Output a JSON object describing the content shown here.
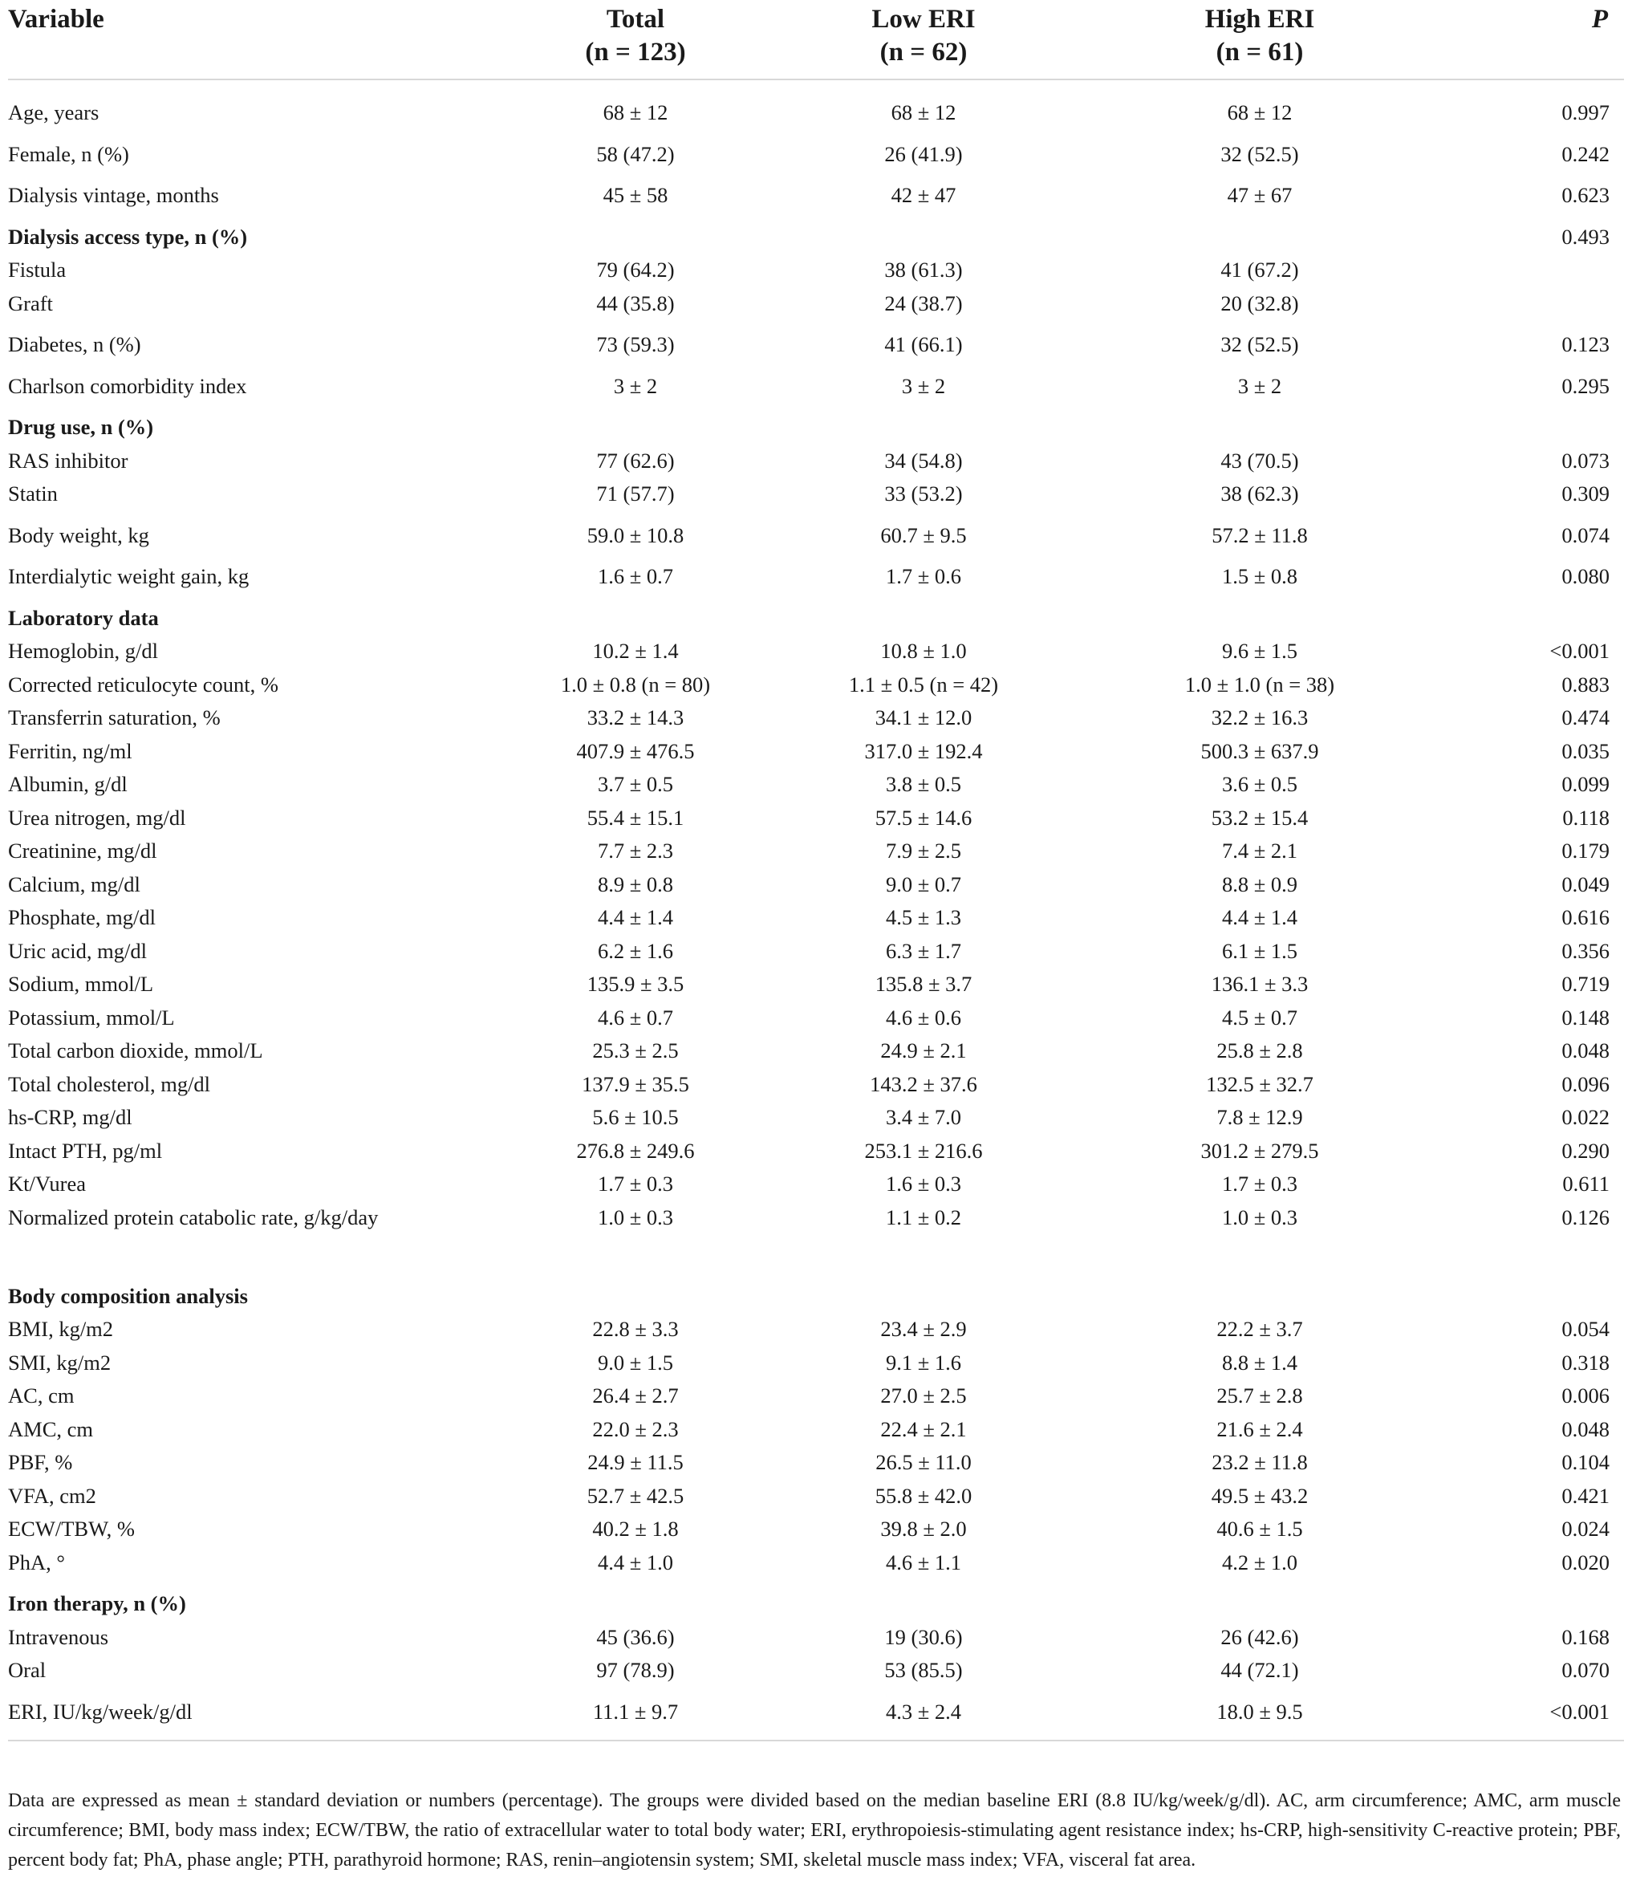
{
  "header": {
    "variable": "Variable",
    "total": "Total",
    "total_n": "(n = 123)",
    "low": "Low ERI",
    "low_n": "(n = 62)",
    "high": "High ERI",
    "high_n": "(n = 61)",
    "p": "P"
  },
  "rows": [
    {
      "label": "Age, years",
      "total": "68 ± 12",
      "low": "68 ± 12",
      "high": "68 ± 12",
      "p": "0.997"
    },
    {
      "label": "Female, n (%)",
      "total": "58 (47.2)",
      "low": "26 (41.9)",
      "high": "32 (52.5)",
      "p": "0.242"
    },
    {
      "label": "Dialysis vintage, months",
      "total": "45 ± 58",
      "low": "42 ± 47",
      "high": "47 ± 67",
      "p": "0.623"
    },
    {
      "label": "Dialysis access type, n (%)",
      "total": "",
      "low": "",
      "high": "",
      "p": "0.493"
    },
    {
      "label": "Fistula",
      "total": "79 (64.2)",
      "low": "38 (61.3)",
      "high": "41 (67.2)",
      "p": ""
    },
    {
      "label": "Graft",
      "total": "44 (35.8)",
      "low": "24 (38.7)",
      "high": "20 (32.8)",
      "p": ""
    },
    {
      "label": "Diabetes, n (%)",
      "total": "73 (59.3)",
      "low": "41 (66.1)",
      "high": "32 (52.5)",
      "p": "0.123"
    },
    {
      "label": "Charlson comorbidity index",
      "total": "3 ± 2",
      "low": "3 ± 2",
      "high": "3 ± 2",
      "p": "0.295"
    },
    {
      "label": "Drug use, n (%)",
      "total": "",
      "low": "",
      "high": "",
      "p": ""
    },
    {
      "label": "RAS inhibitor",
      "total": "77 (62.6)",
      "low": "34 (54.8)",
      "high": "43 (70.5)",
      "p": "0.073"
    },
    {
      "label": "Statin",
      "total": "71 (57.7)",
      "low": "33 (53.2)",
      "high": "38 (62.3)",
      "p": "0.309"
    },
    {
      "label": "Body weight, kg",
      "total": "59.0 ± 10.8",
      "low": "60.7 ± 9.5",
      "high": "57.2 ± 11.8",
      "p": "0.074"
    },
    {
      "label": "Interdialytic weight gain, kg",
      "total": "1.6 ± 0.7",
      "low": "1.7 ± 0.6",
      "high": "1.5 ± 0.8",
      "p": "0.080"
    },
    {
      "label": "Laboratory data",
      "total": "",
      "low": "",
      "high": "",
      "p": ""
    },
    {
      "label": "Hemoglobin, g/dl",
      "total": "10.2 ± 1.4",
      "low": "10.8 ± 1.0",
      "high": "9.6 ± 1.5",
      "p": "<0.001"
    },
    {
      "label": "Corrected reticulocyte count, %",
      "total": "1.0 ± 0.8 (n = 80)",
      "low": "1.1 ± 0.5 (n = 42)",
      "high": "1.0 ± 1.0 (n = 38)",
      "p": "0.883"
    },
    {
      "label": "Transferrin saturation, %",
      "total": "33.2 ± 14.3",
      "low": "34.1 ± 12.0",
      "high": "32.2 ± 16.3",
      "p": "0.474"
    },
    {
      "label": "Ferritin, ng/ml",
      "total": "407.9 ± 476.5",
      "low": "317.0 ± 192.4",
      "high": "500.3 ± 637.9",
      "p": "0.035"
    },
    {
      "label": "Albumin, g/dl",
      "total": "3.7 ± 0.5",
      "low": "3.8 ± 0.5",
      "high": "3.6 ± 0.5",
      "p": "0.099"
    },
    {
      "label": "Urea nitrogen, mg/dl",
      "total": "55.4 ± 15.1",
      "low": "57.5 ± 14.6",
      "high": "53.2 ± 15.4",
      "p": "0.118"
    },
    {
      "label": "Creatinine, mg/dl",
      "total": "7.7 ± 2.3",
      "low": "7.9 ± 2.5",
      "high": "7.4 ± 2.1",
      "p": "0.179"
    },
    {
      "label": "Calcium, mg/dl",
      "total": "8.9 ± 0.8",
      "low": "9.0 ± 0.7",
      "high": "8.8 ± 0.9",
      "p": "0.049"
    },
    {
      "label": "Phosphate, mg/dl",
      "total": "4.4 ± 1.4",
      "low": "4.5 ± 1.3",
      "high": "4.4 ± 1.4",
      "p": "0.616"
    },
    {
      "label": "Uric acid, mg/dl",
      "total": "6.2 ± 1.6",
      "low": "6.3 ± 1.7",
      "high": "6.1 ± 1.5",
      "p": "0.356"
    },
    {
      "label": "Sodium, mmol/L",
      "total": "135.9 ± 3.5",
      "low": "135.8 ± 3.7",
      "high": "136.1 ± 3.3",
      "p": "0.719"
    },
    {
      "label": "Potassium, mmol/L",
      "total": "4.6 ± 0.7",
      "low": "4.6 ± 0.6",
      "high": "4.5 ± 0.7",
      "p": "0.148"
    },
    {
      "label": "Total carbon dioxide, mmol/L",
      "total": "25.3 ± 2.5",
      "low": "24.9 ± 2.1",
      "high": "25.8 ± 2.8",
      "p": "0.048"
    },
    {
      "label": "Total cholesterol, mg/dl",
      "total": "137.9 ± 35.5",
      "low": "143.2 ± 37.6",
      "high": "132.5 ± 32.7",
      "p": "0.096"
    },
    {
      "label": "hs-CRP, mg/dl",
      "total": "5.6 ± 10.5",
      "low": "3.4 ± 7.0",
      "high": "7.8 ± 12.9",
      "p": "0.022"
    },
    {
      "label": "Intact PTH, pg/ml",
      "total": "276.8 ± 249.6",
      "low": "253.1 ± 216.6",
      "high": "301.2 ± 279.5",
      "p": "0.290"
    },
    {
      "label": "Kt/Vurea",
      "total": "1.7 ± 0.3",
      "low": "1.6 ± 0.3",
      "high": "1.7 ± 0.3",
      "p": "0.611"
    },
    {
      "label": "Normalized protein catabolic rate, g/kg/day",
      "total": "1.0 ± 0.3",
      "low": "1.1 ± 0.2",
      "high": "1.0 ± 0.3",
      "p": "0.126"
    },
    {
      "label": "Body composition analysis",
      "total": "",
      "low": "",
      "high": "",
      "p": ""
    },
    {
      "label": "BMI, kg/m2",
      "total": "22.8 ± 3.3",
      "low": "23.4 ± 2.9",
      "high": "22.2 ± 3.7",
      "p": "0.054"
    },
    {
      "label": "SMI, kg/m2",
      "total": "9.0 ± 1.5",
      "low": "9.1 ± 1.6",
      "high": "8.8 ± 1.4",
      "p": "0.318"
    },
    {
      "label": "AC, cm",
      "total": "26.4 ± 2.7",
      "low": "27.0 ± 2.5",
      "high": "25.7 ± 2.8",
      "p": "0.006"
    },
    {
      "label": "AMC, cm",
      "total": "22.0 ± 2.3",
      "low": "22.4 ± 2.1",
      "high": "21.6 ± 2.4",
      "p": "0.048"
    },
    {
      "label": "PBF, %",
      "total": "24.9 ± 11.5",
      "low": "26.5 ± 11.0",
      "high": "23.2 ± 11.8",
      "p": "0.104"
    },
    {
      "label": "VFA, cm2",
      "total": "52.7 ± 42.5",
      "low": "55.8 ± 42.0",
      "high": "49.5 ± 43.2",
      "p": "0.421"
    },
    {
      "label": "ECW/TBW, %",
      "total": "40.2 ± 1.8",
      "low": "39.8 ± 2.0",
      "high": "40.6 ± 1.5",
      "p": "0.024"
    },
    {
      "label": "PhA, °",
      "total": "4.4 ± 1.0",
      "low": "4.6 ± 1.1",
      "high": "4.2 ± 1.0",
      "p": "0.020"
    },
    {
      "label": "Iron therapy, n (%)",
      "total": "",
      "low": "",
      "high": "",
      "p": ""
    },
    {
      "label": "Intravenous",
      "total": "45 (36.6)",
      "low": "19 (30.6)",
      "high": "26 (42.6)",
      "p": "0.168"
    },
    {
      "label": "Oral",
      "total": "97 (78.9)",
      "low": "53 (85.5)",
      "high": "44 (72.1)",
      "p": "0.070"
    },
    {
      "label": "ERI, IU/kg/week/g/dl",
      "total": "11.1 ± 9.7",
      "low": "4.3 ± 2.4",
      "high": "18.0 ± 9.5",
      "p": "<0.001"
    }
  ],
  "footnote": "Data are expressed as mean ± standard deviation or numbers (percentage). The groups were divided based on the median baseline ERI (8.8 IU/kg/week/g/dl). AC, arm circumference; AMC, arm muscle circumference; BMI, body mass index; ECW/TBW, the ratio of extracellular water to total body water; ERI, erythropoiesis-stimulating agent resistance index; hs-CRP, high-sensitivity C-reactive protein; PBF, percent body fat; PhA, phase angle; PTH, parathyroid hormone; RAS, renin–angiotensin system; SMI, skeletal muscle mass index; VFA, visceral fat area."
}
